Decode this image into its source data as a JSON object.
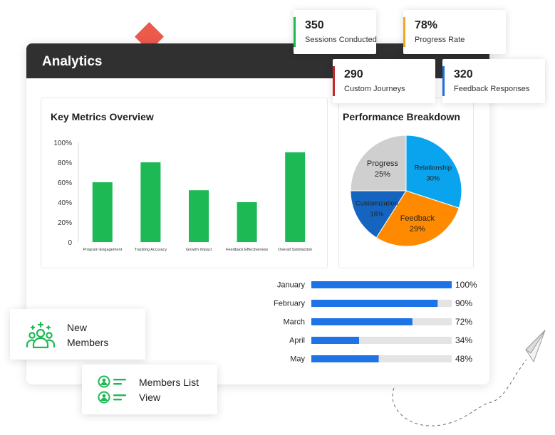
{
  "panel": {
    "title": "Analytics"
  },
  "stats": [
    {
      "value": "350",
      "label": "Sessions Conducted",
      "color": "#1db954"
    },
    {
      "value": "78%",
      "label": "Progress Rate",
      "color": "#f5a623"
    },
    {
      "value": "290",
      "label": "Custom Journeys",
      "color": "#c62828"
    },
    {
      "value": "320",
      "label": "Feedback Responses",
      "color": "#1e6fd9"
    }
  ],
  "key_metrics": {
    "title": "Key Metrics Overview"
  },
  "performance": {
    "title": "Performance Breakdown"
  },
  "chart_data": [
    {
      "type": "bar",
      "title": "Key Metrics Overview",
      "categories": [
        "Program Engagement",
        "Tracking Accuracy",
        "Growth Impact",
        "Feedback Effectiveness",
        "Overall Satisfaction"
      ],
      "values": [
        60,
        80,
        52,
        40,
        90
      ],
      "y_ticks": [
        "100%",
        "80%",
        "60%",
        "40%",
        "20%",
        "0"
      ],
      "ylim": [
        0,
        100
      ],
      "color": "#1db954",
      "grid": false
    },
    {
      "type": "pie",
      "title": "Performance Breakdown",
      "slices": [
        {
          "label": "Relationship",
          "value": 30,
          "display": "30%",
          "color": "#0aa3ee"
        },
        {
          "label": "Feedback",
          "value": 29,
          "display": "29%",
          "color": "#ff8a00"
        },
        {
          "label": "Customization",
          "value": 16,
          "display": "16%",
          "color": "#1565c0"
        },
        {
          "label": "Progress",
          "value": 25,
          "display": "25%",
          "color": "#cfcfcf"
        }
      ]
    },
    {
      "type": "bar",
      "orientation": "horizontal",
      "categories": [
        "January",
        "February",
        "March",
        "April",
        "May"
      ],
      "values": [
        100,
        90,
        72,
        34,
        48
      ],
      "value_labels": [
        "100%",
        "90%",
        "72%",
        "34%",
        "48%"
      ],
      "xlim": [
        0,
        100
      ],
      "color": "#1e73e6",
      "track_color": "#e4e4e4"
    }
  ],
  "new_members": {
    "line1": "New",
    "line2": "Members",
    "icon": "users-group-icon"
  },
  "members_list": {
    "line1": "Members List",
    "line2": "View",
    "icon": "user-list-icon"
  },
  "decor": {
    "diamond_color": "#ec5a4c",
    "plane_icon": "paper-plane-icon"
  }
}
